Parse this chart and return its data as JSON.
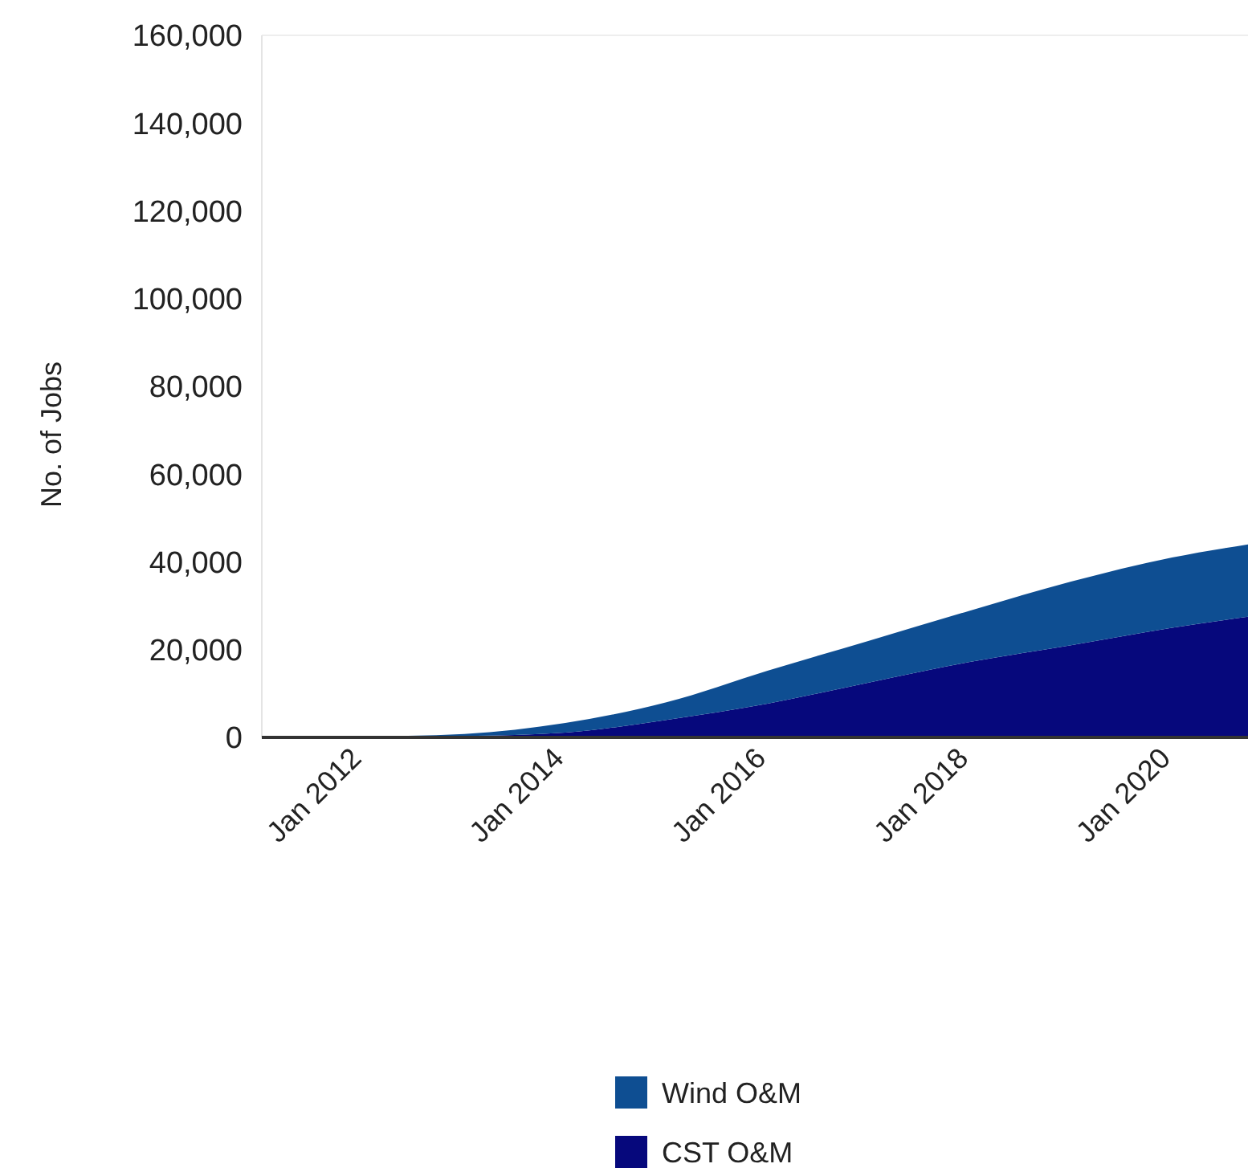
{
  "chart_data": {
    "type": "area",
    "stacked": true,
    "ylabel": "No. of Jobs",
    "x": [
      "2011-01",
      "2012-01",
      "2013-01",
      "2014-01",
      "2015-01",
      "2016-01",
      "2017-01",
      "2018-01",
      "2019-01",
      "2020-01",
      "2020-10"
    ],
    "series": [
      {
        "name": "CST O&M",
        "color": "#06087c",
        "values": [
          0,
          100,
          300,
          1100,
          4000,
          7700,
          12500,
          17200,
          21000,
          25000,
          27500
        ]
      },
      {
        "name": "Wind O&M",
        "color": "#0e4e92",
        "values": [
          0,
          100,
          500,
          2200,
          4000,
          7500,
          9500,
          11700,
          14500,
          16000,
          16500
        ]
      }
    ],
    "xlim": [
      "2011-01",
      "2020-10"
    ],
    "xticks": [
      {
        "value": "2012-01",
        "label": "Jan 2012"
      },
      {
        "value": "2014-01",
        "label": "Jan 2014"
      },
      {
        "value": "2016-01",
        "label": "Jan 2016"
      },
      {
        "value": "2018-01",
        "label": "Jan 2018"
      },
      {
        "value": "2020-01",
        "label": "Jan 2020"
      }
    ],
    "ylim": [
      0,
      160000
    ],
    "yticks": [
      {
        "value": 0,
        "label": "0"
      },
      {
        "value": 20000,
        "label": "20,000"
      },
      {
        "value": 40000,
        "label": "40,000"
      },
      {
        "value": 60000,
        "label": "60,000"
      },
      {
        "value": 80000,
        "label": "80,000"
      },
      {
        "value": 100000,
        "label": "100,000"
      },
      {
        "value": 120000,
        "label": "120,000"
      },
      {
        "value": 140000,
        "label": "140,000"
      },
      {
        "value": 160000,
        "label": "160,000"
      }
    ],
    "grid": false,
    "legend": "bottom"
  }
}
